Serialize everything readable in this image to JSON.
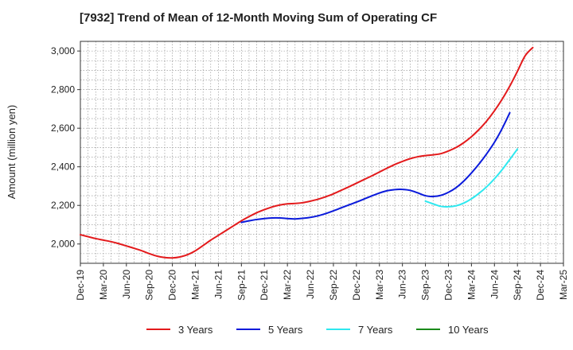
{
  "chart_data": {
    "type": "line",
    "title": "[7932]  Trend of Mean of 12-Month Moving Sum of Operating CF",
    "xlabel": "",
    "ylabel": "Amount (million yen)",
    "ylim": [
      1900,
      3050
    ],
    "yticks": [
      2000,
      2200,
      2400,
      2600,
      2800,
      3000
    ],
    "ytick_labels": [
      "2,000",
      "2,200",
      "2,400",
      "2,600",
      "2,800",
      "3,000"
    ],
    "x_tick_labels": [
      "Dec-19",
      "Mar-20",
      "Jun-20",
      "Sep-20",
      "Dec-20",
      "Mar-21",
      "Jun-21",
      "Sep-21",
      "Dec-21",
      "Mar-22",
      "Jun-22",
      "Sep-22",
      "Dec-22",
      "Mar-23",
      "Jun-23",
      "Sep-23",
      "Dec-23",
      "Mar-24",
      "Jun-24",
      "Sep-24",
      "Dec-24",
      "Mar-25"
    ],
    "grid": true,
    "legend_position": "bottom",
    "series": [
      {
        "name": "3 Years",
        "color": "#e31a1c",
        "x_start": 0,
        "values": [
          2048,
          2038,
          2028,
          2020,
          2012,
          2002,
          1990,
          1978,
          1965,
          1950,
          1937,
          1930,
          1928,
          1933,
          1945,
          1965,
          1992,
          2020,
          2045,
          2070,
          2095,
          2120,
          2142,
          2162,
          2178,
          2192,
          2202,
          2208,
          2210,
          2214,
          2222,
          2232,
          2245,
          2260,
          2278,
          2296,
          2315,
          2334,
          2353,
          2373,
          2393,
          2412,
          2428,
          2442,
          2452,
          2458,
          2462,
          2468,
          2482,
          2500,
          2525,
          2556,
          2594,
          2638,
          2690,
          2750,
          2818,
          2895,
          2975,
          3018
        ]
      },
      {
        "name": "5 Years",
        "color": "#0a1adb",
        "x_start": 21,
        "values": [
          2112,
          2120,
          2127,
          2132,
          2135,
          2135,
          2132,
          2130,
          2133,
          2138,
          2146,
          2158,
          2172,
          2187,
          2202,
          2217,
          2233,
          2249,
          2264,
          2276,
          2282,
          2283,
          2278,
          2265,
          2250,
          2246,
          2252,
          2268,
          2292,
          2326,
          2368,
          2415,
          2468,
          2527,
          2598,
          2680
        ]
      },
      {
        "name": "7 Years",
        "color": "#2ee8ef",
        "x_start": 45,
        "values": [
          2222,
          2208,
          2195,
          2193,
          2198,
          2212,
          2234,
          2263,
          2297,
          2338,
          2385,
          2438,
          2492
        ]
      },
      {
        "name": "10 Years",
        "color": "#1a8a1a",
        "x_start": 0,
        "values": []
      }
    ]
  }
}
